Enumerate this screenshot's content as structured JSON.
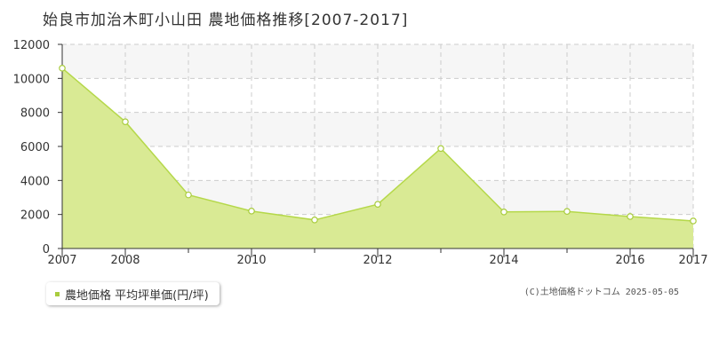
{
  "title": "始良市加治木町小山田 農地価格推移[2007-2017]",
  "legend": {
    "label": "農地価格 平均坪単価(円/坪)"
  },
  "copyright": "(C)土地価格ドットコム 2025-05-05",
  "colors": {
    "area_fill": "#d9ea94",
    "line": "#b5d84a",
    "marker": "#a9cc3e",
    "grid": "#cccccc",
    "band": "#f6f6f6"
  },
  "chart_data": {
    "type": "area",
    "title": "始良市加治木町小山田 農地価格推移[2007-2017]",
    "x": [
      2007,
      2008,
      2009,
      2010,
      2011,
      2012,
      2013,
      2014,
      2015,
      2016,
      2017
    ],
    "series": [
      {
        "name": "農地価格 平均坪単価(円/坪)",
        "values": [
          10600,
          7450,
          3150,
          2200,
          1680,
          2600,
          5880,
          2150,
          2180,
          1880,
          1620
        ]
      }
    ],
    "xticks": [
      2007,
      2008,
      2010,
      2012,
      2014,
      2016,
      2017
    ],
    "yticks": [
      0,
      2000,
      4000,
      6000,
      8000,
      10000,
      12000
    ],
    "xlim": [
      2007,
      2017
    ],
    "ylim": [
      0,
      12000
    ],
    "grid": true,
    "legend_position": "bottom-left"
  }
}
